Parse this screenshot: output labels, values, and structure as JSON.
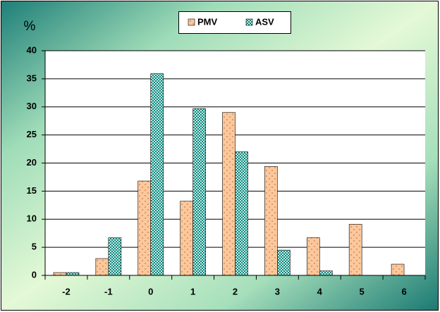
{
  "chart_data": {
    "type": "bar",
    "ylabel": "%",
    "categories": [
      "-2",
      "-1",
      "0",
      "1",
      "2",
      "3",
      "4",
      "5",
      "6"
    ],
    "series": [
      {
        "name": "PMV",
        "color": "#fcc89b",
        "values": [
          0.5,
          3.0,
          16.8,
          13.2,
          29.0,
          19.4,
          6.7,
          9.1,
          2.0
        ]
      },
      {
        "name": "ASV",
        "color": "#13857f",
        "values": [
          0.5,
          6.7,
          35.9,
          29.7,
          22.0,
          4.5,
          0.8,
          0,
          0
        ]
      }
    ],
    "ylim": [
      0,
      40
    ],
    "yticks": [
      0,
      5,
      10,
      15,
      20,
      25,
      30,
      35,
      40
    ],
    "grid": true,
    "legend": "top"
  }
}
